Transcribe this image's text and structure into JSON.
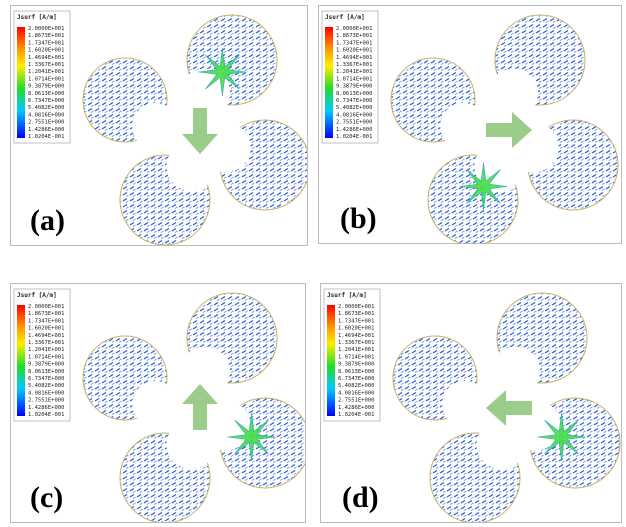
{
  "legend": {
    "title": "Jsurf [A/m]",
    "labels": [
      "2.0000E+001",
      "1.8673E+001",
      "1.7347E+001",
      "1.6020E+001",
      "1.4694E+001",
      "1.3367E+001",
      "1.2041E+001",
      "1.0714E+001",
      "9.3879E+000",
      "8.0613E+000",
      "6.7347E+000",
      "5.4082E+000",
      "4.0816E+000",
      "2.7551E+000",
      "1.4286E+000",
      "1.0204E-001"
    ]
  },
  "panels": [
    {
      "label": "(a)"
    },
    {
      "label": "(b)"
    },
    {
      "label": "(c)"
    },
    {
      "label": "(d)"
    }
  ]
}
